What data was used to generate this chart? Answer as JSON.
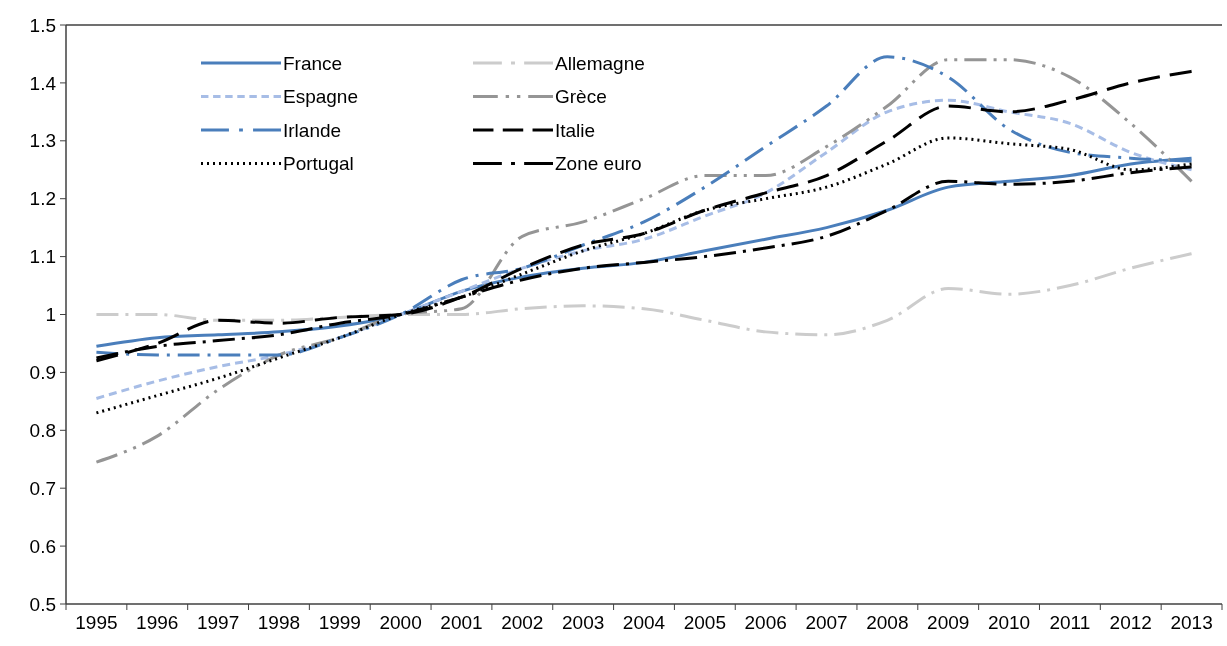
{
  "chart_data": {
    "type": "line",
    "categories": [
      "1995",
      "1996",
      "1997",
      "1998",
      "1999",
      "2000",
      "2001",
      "2002",
      "2003",
      "2004",
      "2005",
      "2006",
      "2007",
      "2008",
      "2009",
      "2010",
      "2011",
      "2012",
      "2013"
    ],
    "ylim": [
      0.5,
      1.5
    ],
    "yticks": [
      0.5,
      0.6,
      0.7,
      0.8,
      0.9,
      1,
      1.1,
      1.2,
      1.3,
      1.4,
      1.5
    ],
    "grid": false,
    "legend": "top left",
    "series": [
      {
        "name": "France",
        "color": "#4a7ebb",
        "line_style": "solid",
        "values": [
          0.945,
          0.96,
          0.965,
          0.97,
          0.98,
          1.0,
          1.04,
          1.065,
          1.08,
          1.09,
          1.11,
          1.13,
          1.15,
          1.18,
          1.22,
          1.23,
          1.24,
          1.26,
          1.27
        ]
      },
      {
        "name": "Allemagne",
        "color": "#cccccc",
        "line_style": "dashed",
        "values": [
          1.0,
          1.0,
          0.99,
          0.99,
          0.995,
          1.0,
          1.0,
          1.01,
          1.015,
          1.01,
          0.99,
          0.97,
          0.965,
          0.99,
          1.045,
          1.035,
          1.05,
          1.08,
          1.105
        ]
      },
      {
        "name": "Espagne",
        "color": "#a7bde6",
        "line_style": "dashed",
        "values": [
          0.855,
          0.885,
          0.91,
          0.93,
          0.96,
          1.0,
          1.04,
          1.08,
          1.11,
          1.13,
          1.17,
          1.21,
          1.28,
          1.35,
          1.37,
          1.35,
          1.33,
          1.28,
          1.25
        ]
      },
      {
        "name": "Grèce",
        "color": "#959595",
        "line_style": "dashed",
        "values": [
          0.745,
          0.79,
          0.87,
          0.93,
          0.96,
          1.0,
          1.01,
          1.135,
          1.16,
          1.2,
          1.24,
          1.24,
          1.29,
          1.36,
          1.44,
          1.44,
          1.41,
          1.33,
          1.23
        ]
      },
      {
        "name": "Irlande",
        "color": "#4a7ebb",
        "line_style": "dashed",
        "values": [
          0.935,
          0.93,
          0.93,
          0.93,
          0.96,
          1.0,
          1.06,
          1.08,
          1.12,
          1.16,
          1.22,
          1.29,
          1.36,
          1.445,
          1.41,
          1.32,
          1.28,
          1.27,
          1.265
        ]
      },
      {
        "name": "Italie",
        "color": "#000000",
        "line_style": "dashed",
        "values": [
          0.92,
          0.95,
          0.99,
          0.985,
          0.995,
          1.0,
          1.03,
          1.08,
          1.12,
          1.14,
          1.18,
          1.21,
          1.24,
          1.3,
          1.36,
          1.35,
          1.37,
          1.4,
          1.42
        ]
      },
      {
        "name": "Portugal",
        "color": "#000000",
        "line_style": "dotted",
        "values": [
          0.83,
          0.86,
          0.89,
          0.925,
          0.96,
          1.0,
          1.03,
          1.07,
          1.11,
          1.14,
          1.18,
          1.2,
          1.22,
          1.26,
          1.305,
          1.295,
          1.285,
          1.25,
          1.26
        ]
      },
      {
        "name": "Zone euro",
        "color": "#000000",
        "line_style": "dashed",
        "values": [
          0.925,
          0.945,
          0.955,
          0.965,
          0.985,
          1.0,
          1.03,
          1.06,
          1.08,
          1.09,
          1.1,
          1.115,
          1.135,
          1.18,
          1.23,
          1.225,
          1.23,
          1.245,
          1.255
        ]
      }
    ]
  }
}
